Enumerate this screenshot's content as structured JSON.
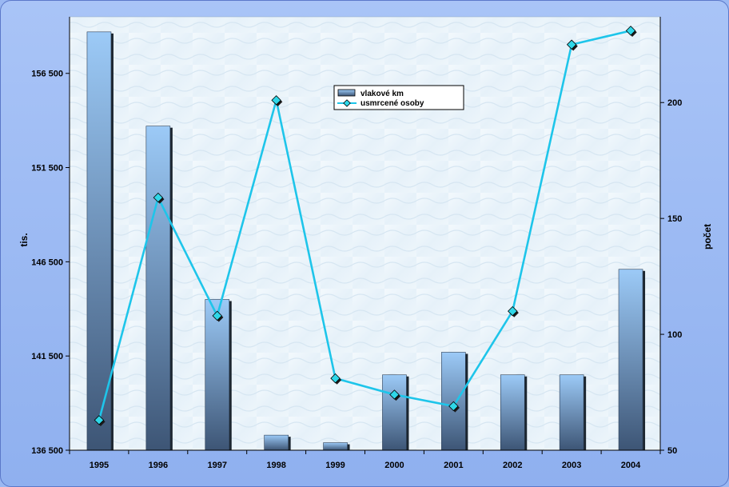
{
  "chart_data": {
    "type": "bar",
    "categories": [
      "1995",
      "1996",
      "1997",
      "1998",
      "1999",
      "2000",
      "2001",
      "2002",
      "2003",
      "2004"
    ],
    "series": [
      {
        "name": "vlakové km",
        "chart_type": "bar",
        "axis": "left",
        "values": [
          158700,
          153700,
          144500,
          137300,
          136900,
          140500,
          141700,
          140500,
          140500,
          146100
        ]
      },
      {
        "name": "usmrcené osoby",
        "chart_type": "line",
        "axis": "right",
        "values": [
          63,
          159,
          108,
          201,
          81,
          74,
          69,
          110,
          225,
          231
        ]
      }
    ],
    "ylabel": "tis.",
    "y2label": "počet",
    "ylim": [
      136500,
      159500
    ],
    "y_ticks": [
      "136 500",
      "141 500",
      "146 500",
      "151 500",
      "156 500"
    ],
    "y2lim": [
      50,
      237
    ],
    "y2_ticks": [
      "50",
      "100",
      "150",
      "200"
    ],
    "grid": false,
    "legend_position": "top-center",
    "colors": {
      "bar_top": "#9ccaf7",
      "bar_bottom": "#3d5575",
      "line": "#1ec5ea",
      "marker": "#2fd7e8",
      "plot_bg": "#eef6fb"
    }
  }
}
